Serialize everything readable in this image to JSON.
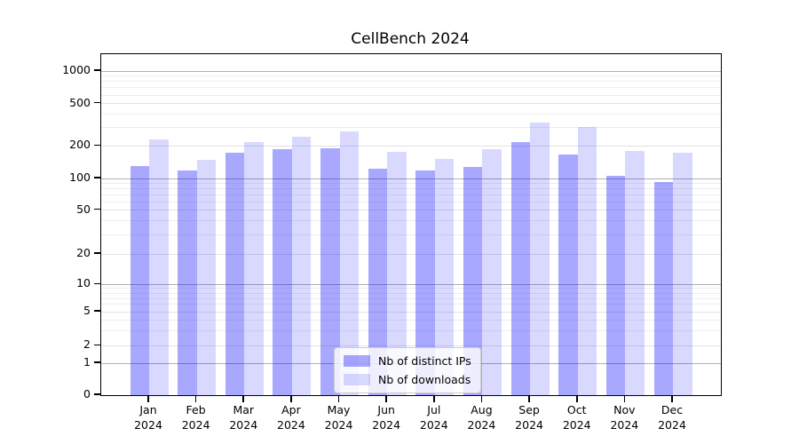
{
  "chart_data": {
    "type": "bar",
    "title": "CellBench 2024",
    "categories": [
      "Jan",
      "Feb",
      "Mar",
      "Apr",
      "May",
      "Jun",
      "Jul",
      "Aug",
      "Sep",
      "Oct",
      "Nov",
      "Dec"
    ],
    "year_label": "2024",
    "series": [
      {
        "name": "Nb of distinct IPs",
        "hex": "#a9a9fa",
        "fill": "rgba(0,0,255,0.34)",
        "values": [
          130,
          118,
          172,
          186,
          190,
          122,
          119,
          127,
          217,
          165,
          105,
          93
        ]
      },
      {
        "name": "Nb of downloads",
        "hex": "#d8d8fa",
        "fill": "rgba(0,0,255,0.15)",
        "values": [
          230,
          150,
          217,
          246,
          275,
          175,
          152,
          185,
          330,
          300,
          180,
          172
        ]
      }
    ],
    "yticks": [
      0,
      1,
      2,
      5,
      10,
      20,
      50,
      100,
      200,
      500,
      1000
    ],
    "yscale": "symlog",
    "ylim": [
      0,
      1400
    ],
    "xlabel": "",
    "ylabel": "",
    "grid": "both",
    "grid_colors": {
      "major": "#b0b0b0",
      "labeled_minor": "#e3e3e3",
      "minor": "#eeeeee"
    },
    "legend_position": "lower center"
  }
}
